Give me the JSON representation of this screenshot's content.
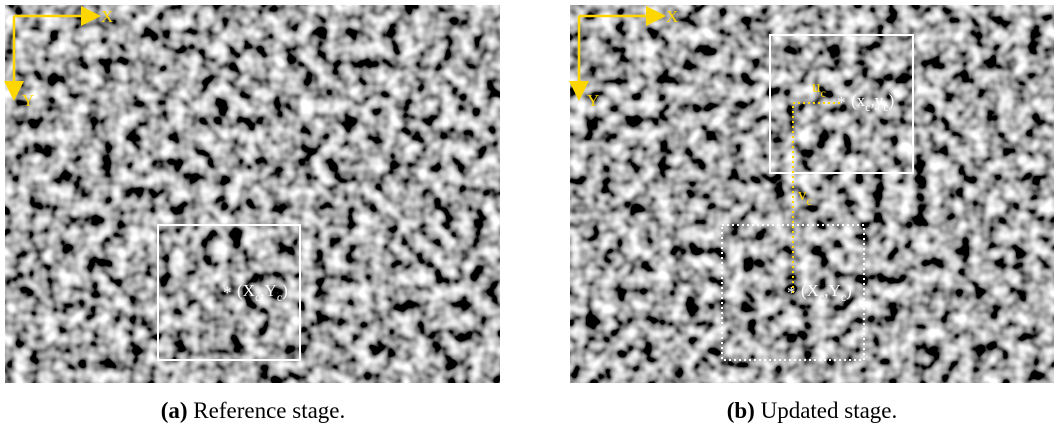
{
  "panel_a": {
    "axis_x": "X",
    "axis_y": "Y",
    "point_label": [
      "(X",
      "c",
      ",Y",
      "c",
      ")"
    ],
    "caption_tag": "(a)",
    "caption": "Reference stage."
  },
  "panel_b": {
    "axis_x": "X",
    "axis_y": "Y",
    "updated_point_label": [
      "(x",
      "c",
      ",y",
      "c",
      ")"
    ],
    "reference_point_label": [
      "(X",
      "c",
      ",Y",
      "c",
      ")"
    ],
    "u_label": [
      "u",
      "c"
    ],
    "v_label": [
      "v",
      "c"
    ],
    "caption_tag": "(b)",
    "caption": "Updated stage."
  }
}
